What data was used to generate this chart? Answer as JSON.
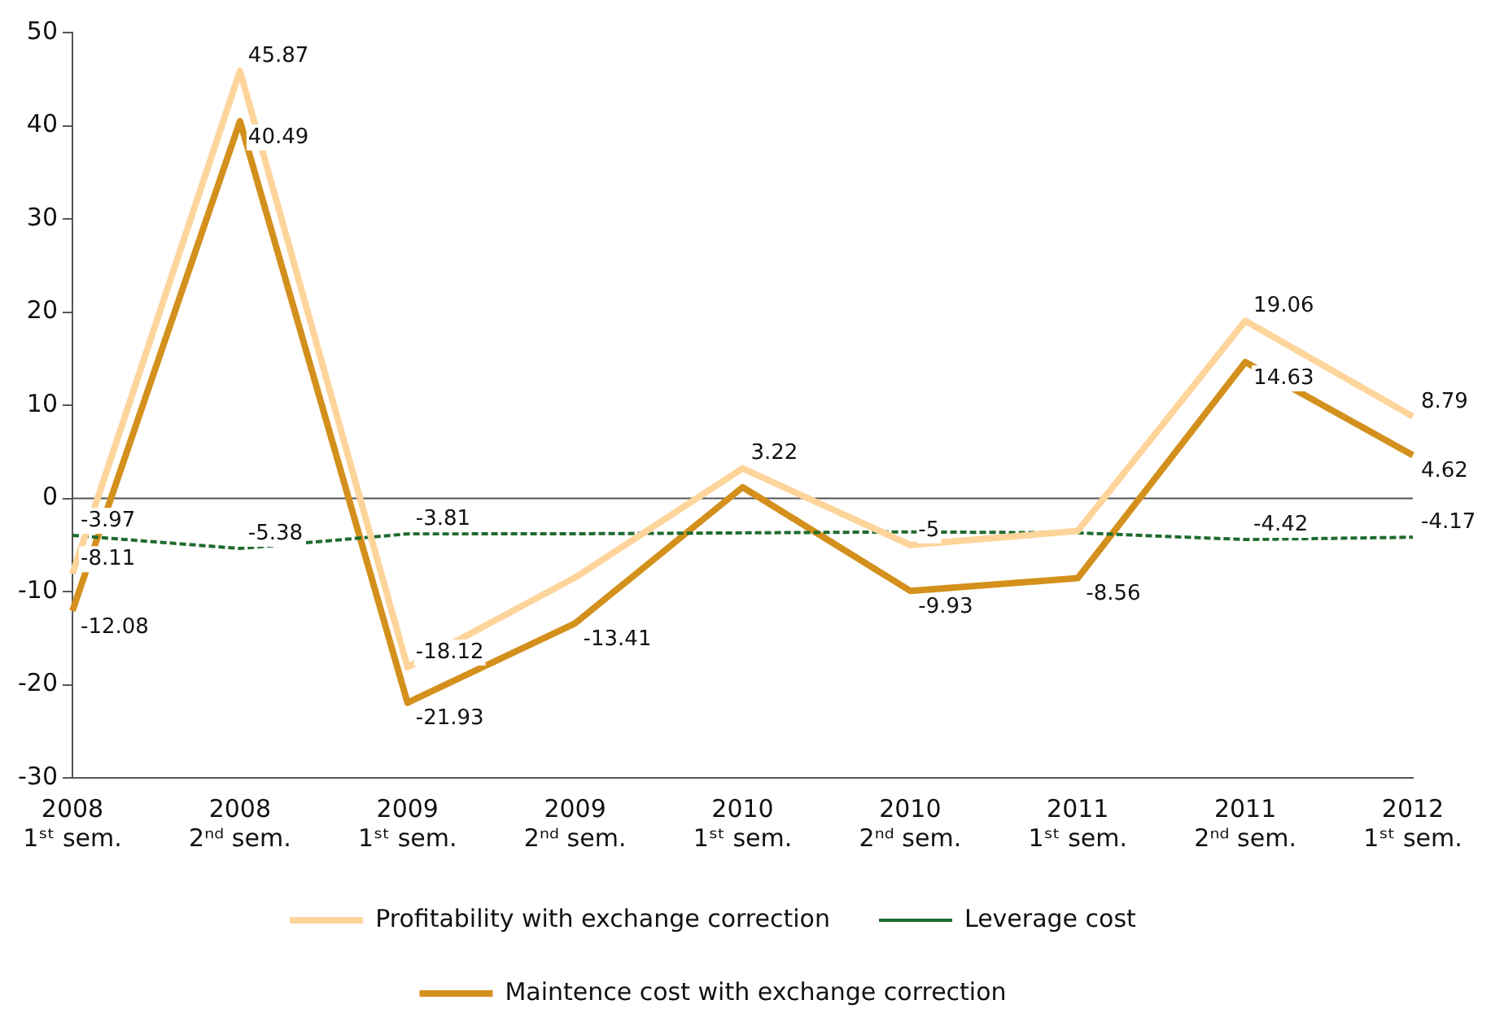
{
  "chart_data": {
    "type": "line",
    "categories": [
      "2008\n1ˢᵗ sem.",
      "2008\n2ⁿᵈ sem.",
      "2009\n1ˢᵗ sem.",
      "2009\n2ⁿᵈ sem.",
      "2010\n1ˢᵗ sem.",
      "2010\n2ⁿᵈ sem.",
      "2011\n1ˢᵗ sem.",
      "2011\n2ⁿᵈ sem.",
      "2012\n1ˢᵗ sem."
    ],
    "series": [
      {
        "name": "Profitability with exchange correction",
        "color": "#fdd49a",
        "values": [
          -8.11,
          45.87,
          -18.12,
          -8.5,
          3.22,
          -5,
          -3.5,
          19.06,
          8.79
        ],
        "value_labels": [
          "-8.11",
          "45.87",
          "-18.12",
          null,
          "3.22",
          "-5",
          null,
          "19.06",
          "8.79"
        ]
      },
      {
        "name": "Leverage cost",
        "color": "#1e6b2e",
        "line_style": "dashed",
        "values": [
          -3.97,
          -5.38,
          -3.81,
          -3.8,
          -3.7,
          -3.6,
          -3.7,
          -4.42,
          -4.17
        ],
        "value_labels": [
          "-3.97",
          "-5.38",
          "-3.81",
          null,
          null,
          null,
          null,
          "-4.42",
          "-4.17"
        ]
      },
      {
        "name": "Maintence cost with exchange correction",
        "color": "#d4901c",
        "values": [
          -12.08,
          40.49,
          -21.93,
          -13.41,
          1.2,
          -9.93,
          -8.56,
          14.63,
          4.62
        ],
        "value_labels": [
          "-12.08",
          "40.49",
          "-21.93",
          "-13.41",
          null,
          "-9.93",
          "-8.56",
          "14.63",
          "4.62"
        ]
      }
    ],
    "ylim": [
      -30,
      50
    ],
    "yticks": [
      -30,
      -20,
      -10,
      0,
      10,
      20,
      30,
      40,
      50
    ],
    "grid": false,
    "legend": "bottom",
    "marker": "none",
    "line_style": "solid",
    "ref_lines": [
      {
        "axis": "y",
        "value": 0,
        "color": "#555555"
      }
    ]
  }
}
